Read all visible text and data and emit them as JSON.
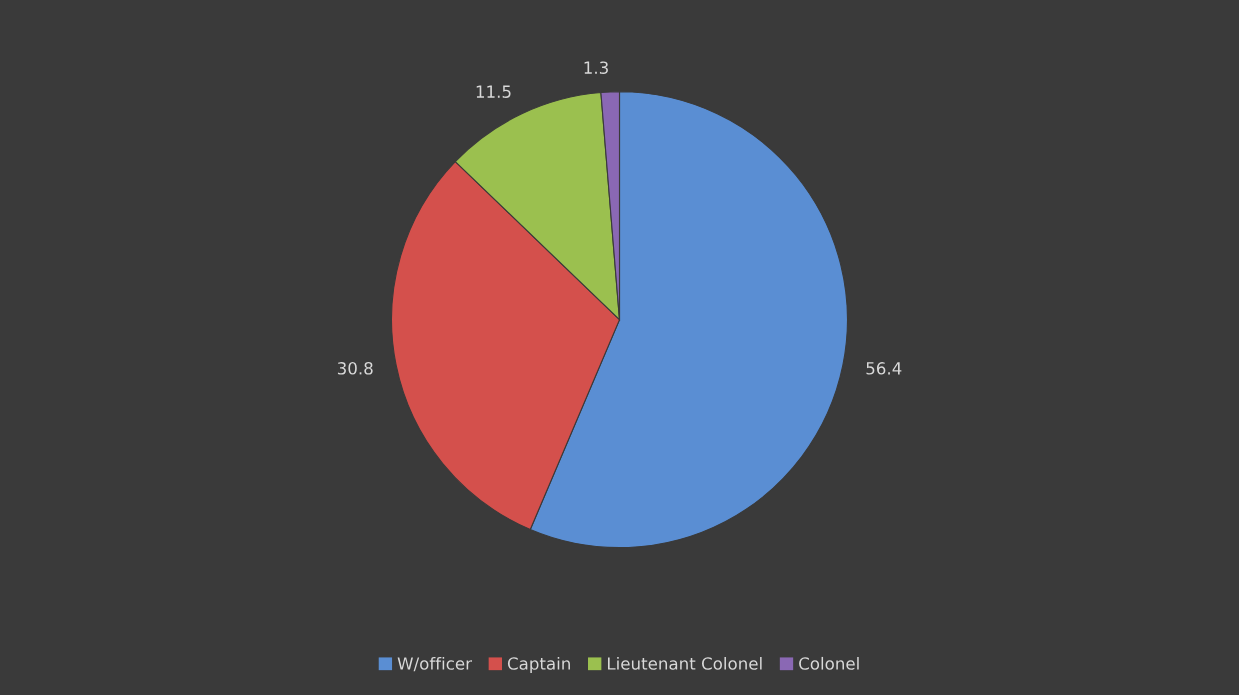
{
  "chart_data": {
    "type": "pie",
    "categories": [
      "W/officer",
      "Captain",
      "Lieutenant Colonel",
      "Colonel"
    ],
    "values": [
      56.4,
      30.8,
      11.5,
      1.3
    ],
    "colors": [
      "#5a8ed3",
      "#d4504c",
      "#9bc04f",
      "#8a68b4"
    ],
    "data_labels": true,
    "legend": "bottom"
  }
}
